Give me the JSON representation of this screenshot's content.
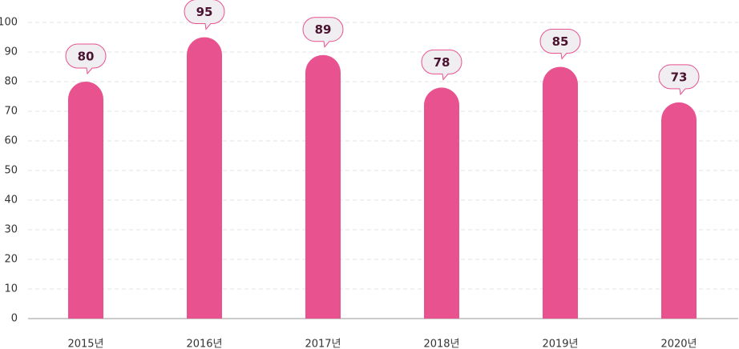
{
  "chart_data": {
    "type": "bar",
    "categories": [
      "2015년",
      "2016년",
      "2017년",
      "2018년",
      "2019년",
      "2020년"
    ],
    "values": [
      80,
      95,
      89,
      78,
      85,
      73
    ],
    "color": "#e8528f",
    "ylim": [
      0,
      100
    ],
    "yticks": [
      0,
      10,
      20,
      30,
      40,
      50,
      60,
      70,
      80,
      90,
      100
    ],
    "grid": true
  }
}
